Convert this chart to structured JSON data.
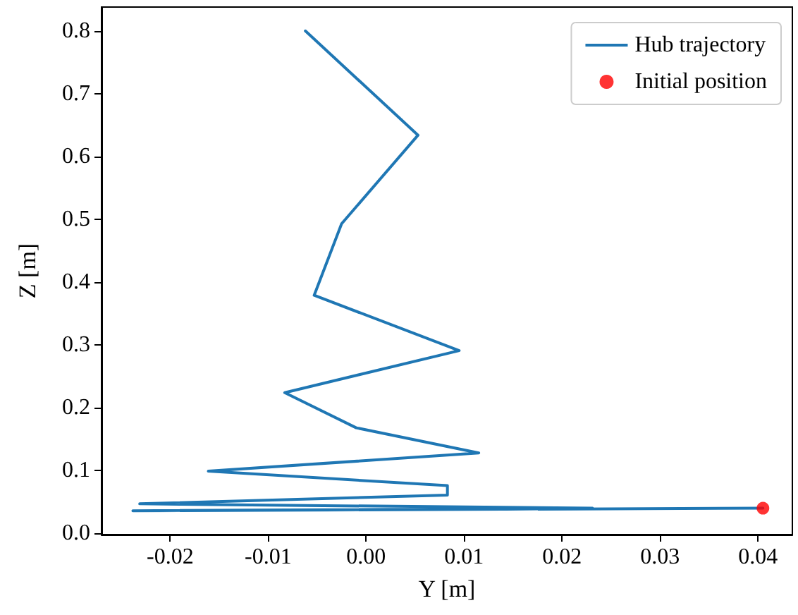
{
  "chart_data": {
    "type": "line",
    "xlabel": "Y [m]",
    "ylabel": "Z [m]",
    "xlim": [
      -0.027,
      0.0435
    ],
    "ylim": [
      -0.002,
      0.838
    ],
    "xticks": [
      {
        "value": -0.02,
        "label": "-0.02"
      },
      {
        "value": -0.01,
        "label": "-0.01"
      },
      {
        "value": 0,
        "label": "0.00"
      },
      {
        "value": 0.01,
        "label": "0.01"
      },
      {
        "value": 0.02,
        "label": "0.02"
      },
      {
        "value": 0.03,
        "label": "0.03"
      },
      {
        "value": 0.04,
        "label": "0.04"
      }
    ],
    "yticks": [
      {
        "value": 0,
        "label": "0.0"
      },
      {
        "value": 0.1,
        "label": "0.1"
      },
      {
        "value": 0.2,
        "label": "0.2"
      },
      {
        "value": 0.3,
        "label": "0.3"
      },
      {
        "value": 0.4,
        "label": "0.4"
      },
      {
        "value": 0.5,
        "label": "0.5"
      },
      {
        "value": 0.6,
        "label": "0.6"
      },
      {
        "value": 0.7,
        "label": "0.7"
      },
      {
        "value": 0.8,
        "label": "0.8"
      }
    ],
    "grid": false,
    "legend": "top right",
    "series": [
      {
        "name": "Hub trajectory",
        "color": "#1f77b4",
        "marker": "none",
        "line_style": "solid",
        "x": [
          0.0405,
          -0.0238,
          0.0231,
          -0.0231,
          0.0083,
          0.0083,
          -0.0161,
          0.0115,
          -0.001,
          -0.0083,
          0.0095,
          -0.0053,
          -0.0025,
          0.0053,
          -0.0062
        ],
        "values": [
          0.04,
          0.036,
          0.04,
          0.047,
          0.061,
          0.076,
          0.099,
          0.128,
          0.168,
          0.224,
          0.291,
          0.379,
          0.493,
          0.634,
          0.8
        ]
      },
      {
        "name": "Initial position",
        "type": "scatter",
        "color": "#ff0000",
        "marker": "circle",
        "x": [
          0.0405
        ],
        "values": [
          0.04
        ]
      }
    ]
  }
}
